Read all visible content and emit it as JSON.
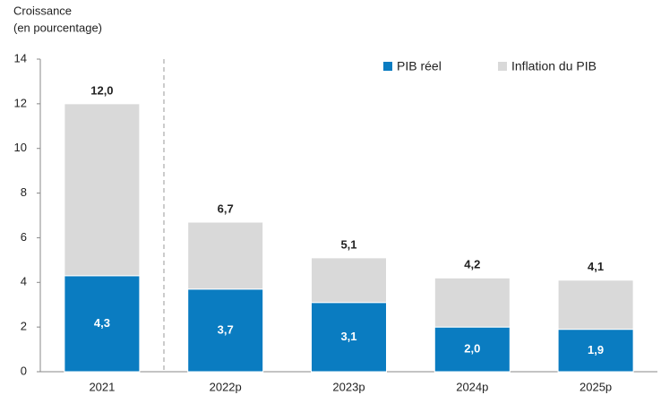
{
  "chart_data": {
    "type": "stacked_bar",
    "y_label_lines": [
      "Croissance",
      "(en pourcentage)"
    ],
    "categories": [
      "2021",
      "2022p",
      "2023p",
      "2024p",
      "2025p"
    ],
    "series": [
      {
        "name": "PIB réel",
        "color": "#0a7cc1",
        "values": [
          4.3,
          3.7,
          3.1,
          2.0,
          1.9
        ],
        "value_labels": [
          "4,3",
          "3,7",
          "3,1",
          "2,0",
          "1,9"
        ]
      },
      {
        "name": "Inflation du PIB",
        "color": "#d9d9d9",
        "values": [
          7.7,
          3.0,
          2.0,
          2.2,
          2.2
        ]
      }
    ],
    "totals": {
      "values": [
        12.0,
        6.7,
        5.1,
        4.2,
        4.1
      ],
      "value_labels": [
        "12,0",
        "6,7",
        "5,1",
        "4,2",
        "4,1"
      ]
    },
    "ylim": [
      0,
      14
    ],
    "yticks": [
      0,
      2,
      4,
      6,
      8,
      10,
      12,
      14
    ],
    "legend": "top-right"
  }
}
